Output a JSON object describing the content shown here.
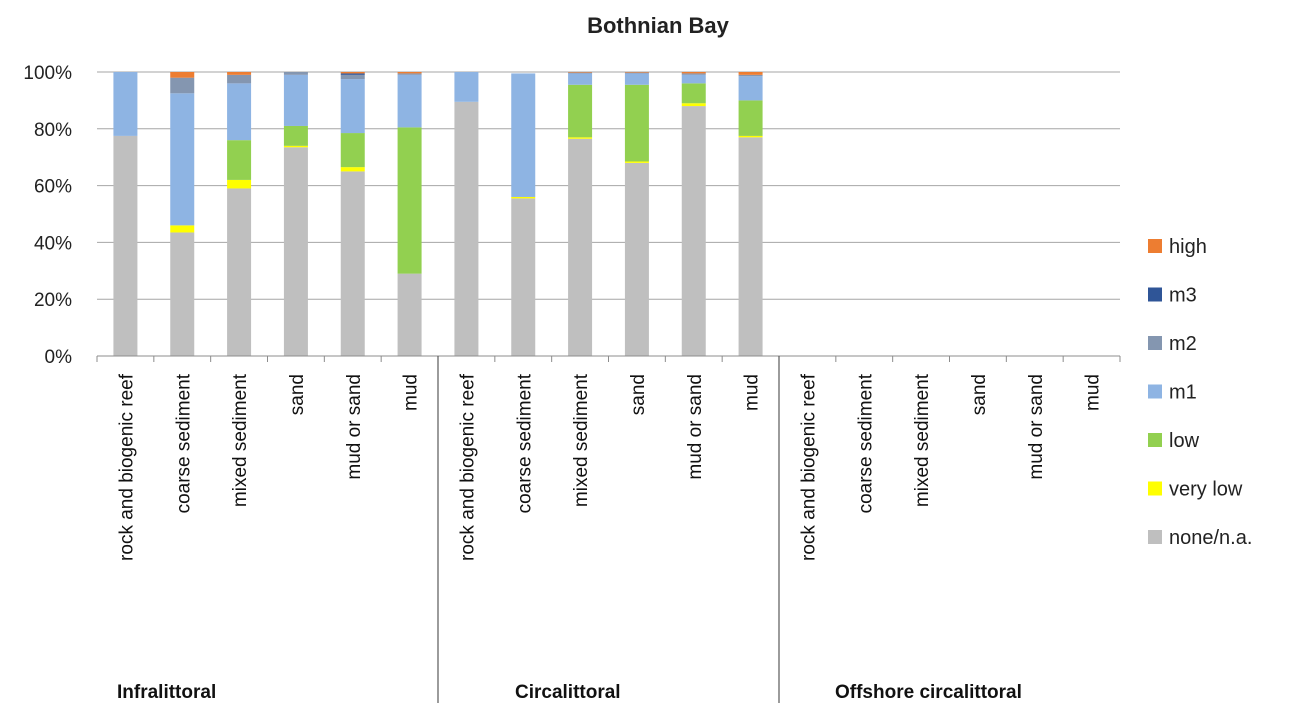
{
  "chart_data": {
    "type": "bar",
    "stacked": true,
    "title": "Bothnian Bay",
    "ylim": [
      0,
      100
    ],
    "y_ticks": [
      "0%",
      "20%",
      "40%",
      "60%",
      "80%",
      "100%"
    ],
    "y_tick_values": [
      0,
      20,
      40,
      60,
      80,
      100
    ],
    "grid": true,
    "legend_position": "right",
    "groups": [
      {
        "label": "Infralittoral",
        "categories": [
          "rock and biogenic reef",
          "coarse sediment",
          "mixed sediment",
          "sand",
          "mud or sand",
          "mud"
        ]
      },
      {
        "label": "Circalittoral",
        "categories": [
          "rock and biogenic reef",
          "coarse sediment",
          "mixed sediment",
          "sand",
          "mud or sand",
          "mud"
        ]
      },
      {
        "label": "Offshore circalittoral",
        "categories": [
          "rock and biogenic reef",
          "coarse sediment",
          "mixed sediment",
          "sand",
          "mud or sand",
          "mud"
        ]
      }
    ],
    "categories": [
      "rock and biogenic reef",
      "coarse sediment",
      "mixed sediment",
      "sand",
      "mud or sand",
      "mud",
      "rock and biogenic reef",
      "coarse sediment",
      "mixed sediment",
      "sand",
      "mud or sand",
      "mud",
      "rock and biogenic reef",
      "coarse sediment",
      "mixed sediment",
      "sand",
      "mud or sand",
      "mud"
    ],
    "series": [
      {
        "name": "none/n.a.",
        "color": "#bfbfbf",
        "values": [
          77.5,
          43.5,
          59,
          73.5,
          65,
          29,
          89.5,
          55.5,
          76.5,
          68,
          88,
          77,
          0,
          0,
          0,
          0,
          0,
          0
        ]
      },
      {
        "name": "very low",
        "color": "#ffff00",
        "values": [
          0,
          2.5,
          3,
          0.5,
          1.5,
          0,
          0,
          0.5,
          0.5,
          0.5,
          1,
          0.5,
          0,
          0,
          0,
          0,
          0,
          0
        ]
      },
      {
        "name": "low",
        "color": "#92d050",
        "values": [
          0,
          0,
          14,
          7,
          12,
          51.5,
          0,
          0,
          18.5,
          27,
          7,
          12.5,
          0,
          0,
          0,
          0,
          0,
          0
        ]
      },
      {
        "name": "m1",
        "color": "#8eb4e3",
        "values": [
          22.5,
          46.5,
          20,
          18,
          19,
          18.5,
          10.5,
          43.5,
          4,
          4,
          3,
          8.5,
          0,
          0,
          0,
          0,
          0,
          0
        ]
      },
      {
        "name": "m2",
        "color": "#8496b0",
        "values": [
          0,
          5.5,
          3,
          1,
          1.5,
          0.5,
          0,
          0,
          0.3,
          0.3,
          0.5,
          0.5,
          0,
          0,
          0,
          0,
          0,
          0
        ]
      },
      {
        "name": "m3",
        "color": "#2f5597",
        "values": [
          0,
          0,
          0,
          0,
          0.5,
          0,
          0,
          0,
          0,
          0,
          0,
          0,
          0,
          0,
          0,
          0,
          0,
          0
        ]
      },
      {
        "name": "high",
        "color": "#ed7d31",
        "values": [
          0,
          2,
          1,
          0,
          0.5,
          0.5,
          0,
          0,
          0.2,
          0.2,
          0.5,
          1,
          0,
          0,
          0,
          0,
          0,
          0
        ]
      }
    ],
    "legend_order": [
      "high",
      "m3",
      "m2",
      "m1",
      "low",
      "very low",
      "none/n.a."
    ]
  }
}
